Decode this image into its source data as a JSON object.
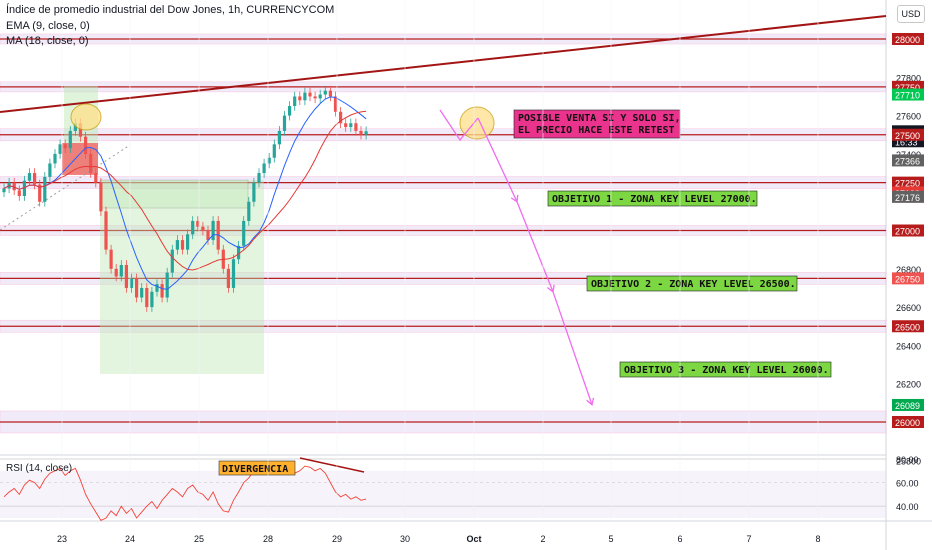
{
  "header": {
    "title": "Índice de promedio industrial del Dow Jones, 1h, CURRENCYCOM",
    "ema": "EMA (9, close, 0)",
    "ma": "MA (18, close, 0)",
    "currency": "USD"
  },
  "rsi": {
    "label": "RSI (14, close)",
    "ticks": [
      "80.00",
      "60.00",
      "40.00"
    ],
    "divergence_label": "DIVERGENCIA"
  },
  "colors": {
    "up": "#26a69a",
    "down": "#ef5350",
    "ema": "#2962ff",
    "ma": "#e53935",
    "level_line": "#b71c1c",
    "zone": "#e6dcf5",
    "arrow": "#f06cf0",
    "rsi": "#f44336"
  },
  "chart_data": {
    "type": "candlestick",
    "x_tick_labels": [
      "23",
      "24",
      "25",
      "28",
      "29",
      "30",
      "Oct",
      "2",
      "5",
      "6",
      "7",
      "8"
    ],
    "y_tick_labels": [
      "28000",
      "27800",
      "27600",
      "27400",
      "27200",
      "27000",
      "26800",
      "26600",
      "26400",
      "26200",
      "25800"
    ],
    "price_badges": [
      {
        "text": "28000",
        "value": 28000,
        "color": "#b71c1c"
      },
      {
        "text": "27750",
        "value": 27750,
        "color": "#b71c1c"
      },
      {
        "text": "27710",
        "value": 27710,
        "color": "#00c853"
      },
      {
        "text": "27518",
        "value": 27518,
        "color": "#131722"
      },
      {
        "text": "16:33",
        "value": 27466,
        "color": "#131722"
      },
      {
        "text": "27500",
        "value": 27500,
        "color": "#b71c1c"
      },
      {
        "text": "27366",
        "value": 27366,
        "color": "#616161"
      },
      {
        "text": "27250",
        "value": 27250,
        "color": "#b71c1c"
      },
      {
        "text": "27199",
        "value": 27199,
        "color": "#e53935"
      },
      {
        "text": "27177",
        "value": 27177,
        "color": "#e53935"
      },
      {
        "text": "27176",
        "value": 27176,
        "color": "#616161"
      },
      {
        "text": "27000",
        "value": 27000,
        "color": "#b71c1c"
      },
      {
        "text": "26750",
        "value": 26750,
        "color": "#ef5350"
      },
      {
        "text": "26500",
        "value": 26500,
        "color": "#b71c1c"
      },
      {
        "text": "26089",
        "value": 26089,
        "color": "#00a84f"
      },
      {
        "text": "26000",
        "value": 26000,
        "color": "#b71c1c"
      }
    ],
    "levels": [
      28000,
      27750,
      27500,
      27250,
      27000,
      26750,
      26500,
      26000
    ],
    "annotations": [
      {
        "text": "POSIBLE VENTA SI Y SOLO SI,\nEL PRECIO HACE ESTE RETEST",
        "style": "magenta"
      },
      {
        "text": "OBJETIVO 1 - ZONA KEY LEVEL 27000.",
        "style": "green"
      },
      {
        "text": "OBJETIVO 2 - ZONA KEY LEVEL 26500.",
        "style": "green"
      },
      {
        "text": "OBJETIVO 3 - ZONA KEY LEVEL 26000.",
        "style": "green"
      }
    ],
    "projected_path": [
      27500,
      27150,
      26680,
      26090
    ],
    "candles_close": [
      27220,
      27250,
      27210,
      27180,
      27260,
      27300,
      27240,
      27150,
      27280,
      27350,
      27400,
      27450,
      27430,
      27520,
      27560,
      27490,
      27400,
      27300,
      27250,
      27100,
      26900,
      26800,
      26760,
      26820,
      26700,
      26750,
      26650,
      26700,
      26600,
      26680,
      26720,
      26650,
      26780,
      26900,
      26950,
      26900,
      26980,
      27050,
      27020,
      27000,
      26950,
      27050,
      26900,
      26800,
      26700,
      26850,
      26920,
      27050,
      27150,
      27250,
      27300,
      27350,
      27380,
      27450,
      27520,
      27600,
      27650,
      27700,
      27680,
      27720,
      27700,
      27690,
      27710,
      27730,
      27700,
      27620,
      27560,
      27540,
      27560,
      27520,
      27500,
      27518
    ],
    "rsi_values": [
      48,
      52,
      55,
      50,
      58,
      62,
      60,
      55,
      63,
      68,
      70,
      72,
      66,
      70,
      72,
      62,
      50,
      42,
      35,
      28,
      30,
      36,
      32,
      40,
      34,
      38,
      30,
      35,
      40,
      44,
      38,
      45,
      50,
      55,
      52,
      48,
      55,
      58,
      52,
      50,
      45,
      52,
      42,
      36,
      35,
      45,
      52,
      60,
      64,
      70,
      72,
      75,
      74,
      78,
      76,
      72,
      75,
      68,
      70,
      74,
      73,
      70,
      72,
      68,
      60,
      52,
      48,
      50,
      46,
      48,
      45,
      46
    ],
    "ylim": [
      25700,
      28100
    ],
    "rsi_ylim": [
      25,
      85
    ]
  }
}
